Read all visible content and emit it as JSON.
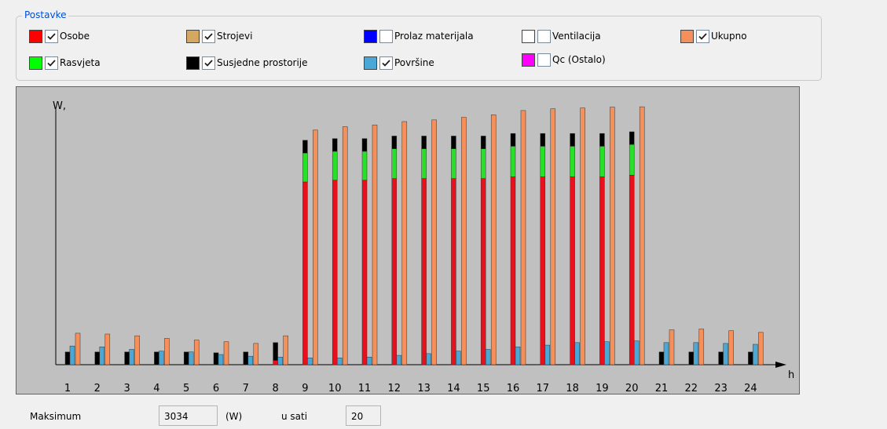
{
  "groupbox": {
    "title": "Postavke",
    "items": [
      {
        "label": "Osobe",
        "color": "#ff0000",
        "checked": true
      },
      {
        "label": "Strojevi",
        "color": "#d4a860",
        "checked": true
      },
      {
        "label": "Prolaz materijala",
        "color": "#0000ff",
        "checked": false
      },
      {
        "label": "Ventilacija",
        "color": "#ffffff",
        "checked": false
      },
      {
        "label": "Ukupno",
        "color": "#f5905a",
        "checked": true
      },
      {
        "label": "Rasvjeta",
        "color": "#00ff00",
        "checked": true
      },
      {
        "label": "Susjedne prostorije",
        "color": "#000000",
        "checked": true
      },
      {
        "label": "Površine",
        "color": "#4aa8d6",
        "checked": true
      },
      {
        "label": "Qc (Ostalo)",
        "color": "#ff00ff",
        "checked": false
      }
    ]
  },
  "chart_data": {
    "type": "bar",
    "ylabel": "W,",
    "xlabel": "h",
    "categories": [
      "1",
      "2",
      "3",
      "4",
      "5",
      "6",
      "7",
      "8",
      "9",
      "10",
      "11",
      "12",
      "13",
      "14",
      "15",
      "16",
      "17",
      "18",
      "19",
      "20",
      "21",
      "22",
      "23",
      "24"
    ],
    "ylim": [
      0,
      3100
    ],
    "series": [
      {
        "name": "Osobe",
        "color": "#e8101c",
        "values": [
          0,
          0,
          0,
          0,
          0,
          0,
          0,
          50,
          2150,
          2170,
          2170,
          2190,
          2190,
          2190,
          2190,
          2210,
          2210,
          2210,
          2210,
          2230,
          0,
          0,
          0,
          0
        ]
      },
      {
        "name": "Rasvjeta",
        "color": "#28e028",
        "values": [
          0,
          0,
          0,
          0,
          0,
          0,
          0,
          0,
          340,
          340,
          340,
          350,
          350,
          350,
          350,
          360,
          360,
          360,
          360,
          360,
          0,
          0,
          0,
          0
        ]
      },
      {
        "name": "Susjedne prostorije",
        "color": "#000000",
        "values": [
          150,
          150,
          150,
          150,
          150,
          140,
          150,
          210,
          150,
          150,
          150,
          150,
          150,
          150,
          150,
          150,
          150,
          150,
          150,
          150,
          150,
          150,
          150,
          150
        ]
      },
      {
        "name": "Površine",
        "color": "#4aa8d6",
        "values": [
          220,
          210,
          180,
          160,
          150,
          120,
          100,
          90,
          80,
          80,
          90,
          110,
          130,
          160,
          180,
          210,
          230,
          260,
          270,
          280,
          260,
          260,
          250,
          240
        ]
      },
      {
        "name": "Ukupno",
        "color": "#f5905a",
        "values": [
          370,
          360,
          340,
          310,
          290,
          270,
          250,
          340,
          2760,
          2800,
          2820,
          2860,
          2880,
          2910,
          2940,
          2990,
          3010,
          3020,
          3030,
          3034,
          410,
          420,
          400,
          380
        ]
      }
    ]
  },
  "footer": {
    "max_label": "Maksimum",
    "max_value": "3034",
    "unit": "(W)",
    "hour_label": "u sati",
    "hour_value": "20"
  }
}
